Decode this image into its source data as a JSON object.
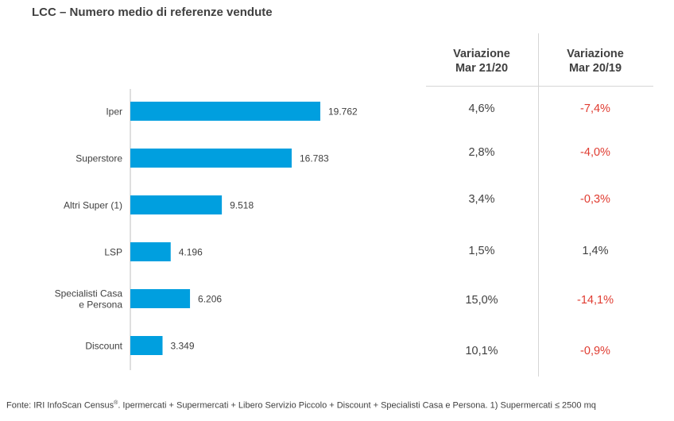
{
  "title": "LCC – Numero medio di referenze vendute",
  "chart_data": {
    "type": "bar",
    "orientation": "horizontal",
    "categories": [
      "Iper",
      "Superstore",
      "Altri Super (1)",
      "LSP",
      "Specialisti Casa e Persona",
      "Discount"
    ],
    "category_lines": [
      [
        "Iper"
      ],
      [
        "Superstore"
      ],
      [
        "Altri Super (1)"
      ],
      [
        "LSP"
      ],
      [
        "Specialisti Casa",
        "e Persona"
      ],
      [
        "Discount"
      ]
    ],
    "values": [
      19762,
      16783,
      9518,
      4196,
      6206,
      3349
    ],
    "value_labels": [
      "19.762",
      "16.783",
      "9.518",
      "4.196",
      "6.206",
      "3.349"
    ],
    "bar_color": "#009fdf",
    "xlim": [
      0,
      20000
    ]
  },
  "table": {
    "columns": [
      {
        "line1": "Variazione",
        "line2": "Mar 21/20"
      },
      {
        "line1": "Variazione",
        "line2": "Mar 20/19"
      }
    ],
    "rows": [
      [
        "4,6%",
        "-7,4%"
      ],
      [
        "2,8%",
        "-4,0%"
      ],
      [
        "3,4%",
        "-0,3%"
      ],
      [
        "1,5%",
        "1,4%"
      ],
      [
        "15,0%",
        "-14,1%"
      ],
      [
        "10,1%",
        "-0,9%"
      ]
    ]
  },
  "colors": {
    "positive": "#404040",
    "negative": "#e03c31"
  },
  "footer": {
    "prefix": "Fonte: IRI InfoScan Census",
    "reg": "®",
    "suffix": ". Ipermercati + Supermercati + Libero Servizio Piccolo + Discount + Specialisti Casa e Persona. 1) Supermercati ≤ 2500 mq"
  }
}
